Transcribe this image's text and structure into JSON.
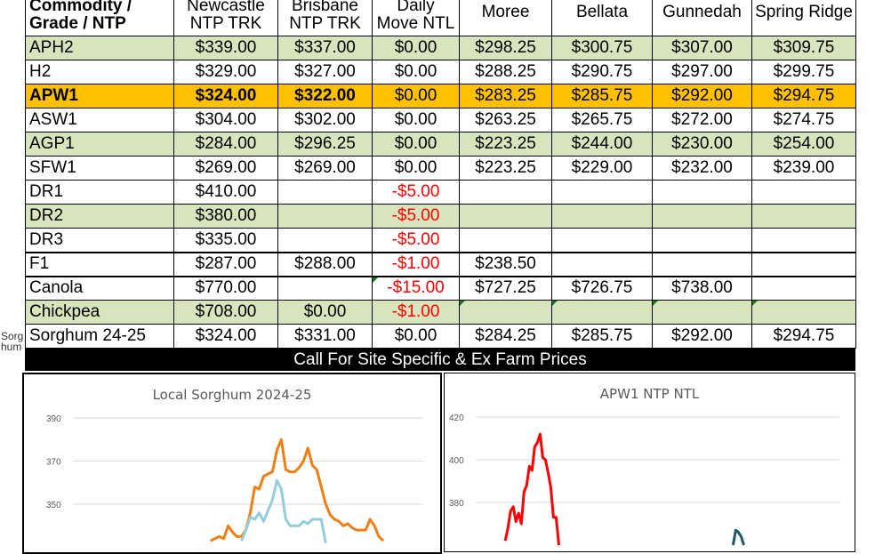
{
  "table": {
    "headers": [
      "Commodity / Grade / NTP",
      "Newcastle NTP TRK",
      "Brisbane NTP TRK",
      "Daily Move NTL",
      "Moree",
      "Bellata",
      "Gunnedah",
      "Spring Ridge"
    ],
    "header_lines": {
      "c0a": "Commodity /",
      "c0b": "Grade / NTP",
      "c1a": "Newcastle",
      "c1b": "NTP TRK",
      "c2a": "Brisbane",
      "c2b": "NTP TRK",
      "c3a": "Daily",
      "c3b": "Move NTL"
    },
    "rows": [
      {
        "name": "APH2",
        "cells": [
          "$339.00",
          "$337.00",
          "$0.00",
          "$298.25",
          "$300.75",
          "$307.00",
          "$309.75"
        ],
        "style": "green"
      },
      {
        "name": "H2",
        "cells": [
          "$329.00",
          "$327.00",
          "$0.00",
          "$288.25",
          "$290.75",
          "$297.00",
          "$299.75"
        ],
        "style": ""
      },
      {
        "name": "APW1",
        "cells": [
          "$324.00",
          "$322.00",
          "$0.00",
          "$283.25",
          "$285.75",
          "$292.00",
          "$294.75"
        ],
        "style": "hl"
      },
      {
        "name": "ASW1",
        "cells": [
          "$304.00",
          "$302.00",
          "$0.00",
          "$263.25",
          "$265.75",
          "$272.00",
          "$274.75"
        ],
        "style": ""
      },
      {
        "name": "AGP1",
        "cells": [
          "$284.00",
          "$296.25",
          "$0.00",
          "$223.25",
          "$244.00",
          "$230.00",
          "$254.00"
        ],
        "style": "green"
      },
      {
        "name": "SFW1",
        "cells": [
          "$269.00",
          "$269.00",
          "$0.00",
          "$223.25",
          "$229.00",
          "$232.00",
          "$239.00"
        ],
        "style": ""
      },
      {
        "name": "DR1",
        "cells": [
          "$410.00",
          "",
          "-$5.00",
          "",
          "",
          "",
          ""
        ],
        "style": ""
      },
      {
        "name": "DR2",
        "cells": [
          "$380.00",
          "",
          "-$5.00",
          "",
          "",
          "",
          ""
        ],
        "style": "green"
      },
      {
        "name": "DR3",
        "cells": [
          "$335.00",
          "",
          "-$5.00",
          "",
          "",
          "",
          ""
        ],
        "style": ""
      },
      {
        "name": "F1",
        "cells": [
          "$287.00",
          "$288.00",
          "-$1.00",
          "$238.50",
          "",
          "",
          ""
        ],
        "style": ""
      },
      {
        "name": "Canola",
        "cells": [
          "$770.00",
          "",
          "-$15.00",
          "$727.25",
          "$726.75",
          "$738.00",
          ""
        ],
        "style": ""
      },
      {
        "name": "Chickpea",
        "cells": [
          "$708.00",
          "$0.00",
          "-$1.00",
          "",
          "",
          "",
          ""
        ],
        "style": "green"
      },
      {
        "name": "Sorghum 24-25",
        "cells": [
          "$324.00",
          "$331.00",
          "$0.00",
          "$284.25",
          "$285.75",
          "$292.00",
          "$294.75"
        ],
        "style": ""
      }
    ]
  },
  "side_label": "Sorghum",
  "banner": "Call For Site Specific & Ex Farm Prices",
  "colors": {
    "green_row": "#d8e4bc",
    "highlight_row": "#ffc000",
    "negative": "#ff0000"
  },
  "chart_data": [
    {
      "type": "line",
      "title": "Local Sorghum 2024-25",
      "ylim": [
        330,
        390
      ],
      "yticks": [
        350,
        370,
        390
      ],
      "grid": true,
      "x_count": 80,
      "series": [
        {
          "color": "#f07f13",
          "points": [
            [
              31,
              333
            ],
            [
              32,
              334
            ],
            [
              33,
              335
            ],
            [
              34,
              334
            ],
            [
              35,
              340
            ],
            [
              36,
              337
            ],
            [
              37,
              335
            ],
            [
              38,
              335
            ],
            [
              39,
              338
            ],
            [
              40,
              346
            ],
            [
              41,
              358
            ],
            [
              42,
              357
            ],
            [
              43,
              363
            ],
            [
              44,
              364
            ],
            [
              45,
              365
            ],
            [
              46,
              375
            ],
            [
              47,
              380
            ],
            [
              48,
              366
            ],
            [
              49,
              365
            ],
            [
              50,
              365
            ],
            [
              51,
              367
            ],
            [
              52,
              370
            ],
            [
              53,
              376
            ],
            [
              54,
              368
            ],
            [
              55,
              366
            ],
            [
              56,
              358
            ],
            [
              57,
              350
            ],
            [
              58,
              345
            ],
            [
              59,
              343
            ],
            [
              60,
              342
            ],
            [
              61,
              340
            ],
            [
              62,
              341
            ],
            [
              63,
              339
            ],
            [
              64,
              338
            ],
            [
              65,
              338
            ],
            [
              66,
              338
            ],
            [
              67,
              343
            ],
            [
              68,
              340
            ],
            [
              69,
              335
            ],
            [
              70,
              333
            ]
          ]
        },
        {
          "color": "#92cddc",
          "points": [
            [
              38,
              333
            ],
            [
              39,
              338
            ],
            [
              40,
              344
            ],
            [
              41,
              343
            ],
            [
              42,
              346
            ],
            [
              43,
              342
            ],
            [
              44,
              347
            ],
            [
              45,
              352
            ],
            [
              46,
              361
            ],
            [
              47,
              357
            ],
            [
              48,
              343
            ],
            [
              49,
              340
            ],
            [
              50,
              340
            ],
            [
              51,
              340
            ],
            [
              52,
              342
            ],
            [
              53,
              341
            ],
            [
              54,
              343
            ],
            [
              55,
              343
            ],
            [
              56,
              343
            ],
            [
              57,
              332
            ]
          ]
        }
      ]
    },
    {
      "type": "line",
      "title": "APW1 NTP NTL",
      "ylim": [
        360,
        420
      ],
      "yticks": [
        380,
        400,
        420
      ],
      "grid": true,
      "x_count": 137,
      "series": [
        {
          "color": "#ff0000",
          "points": [
            [
              11,
              362
            ],
            [
              12,
              368
            ],
            [
              13,
              376
            ],
            [
              14,
              378
            ],
            [
              15,
              371
            ],
            [
              16,
              375
            ],
            [
              17,
              370
            ],
            [
              18,
              385
            ],
            [
              19,
              388
            ],
            [
              20,
              397
            ],
            [
              21,
              395
            ],
            [
              22,
              406
            ],
            [
              23,
              408
            ],
            [
              24,
              412
            ],
            [
              25,
              401
            ],
            [
              26,
              400
            ],
            [
              27,
              394
            ],
            [
              28,
              387
            ],
            [
              29,
              373
            ],
            [
              30,
              373
            ],
            [
              31,
              360
            ]
          ]
        },
        {
          "color": "#215868",
          "points": [
            [
              96,
              360
            ],
            [
              97,
              367
            ],
            [
              98,
              366
            ],
            [
              99,
              364
            ],
            [
              100,
              360
            ]
          ]
        }
      ]
    }
  ]
}
